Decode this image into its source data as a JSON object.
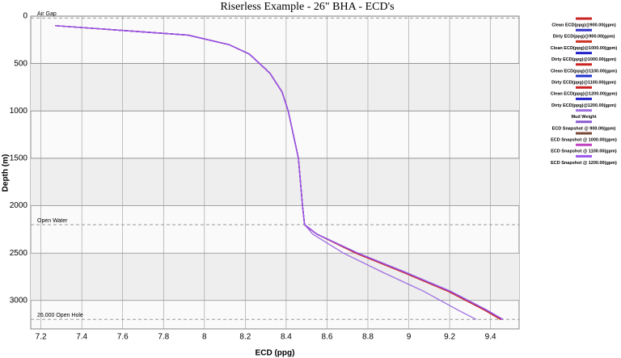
{
  "chart_data": {
    "type": "line",
    "title": "Riserless Example - 26\" BHA - ECD's",
    "x_label": "ECD (ppg)",
    "y_label": "Depth (m)",
    "xlim": [
      7.15,
      9.54
    ],
    "ylim": [
      0,
      3300
    ],
    "y_inverted": true,
    "grid": true,
    "xticks": [
      7.2,
      7.4,
      7.6,
      7.8,
      8.0,
      8.2,
      8.4,
      8.6,
      8.8,
      9.0,
      9.2,
      9.4
    ],
    "yticks": [
      0,
      500,
      1000,
      1500,
      2000,
      2500,
      3000
    ],
    "depth": [
      100,
      200,
      300,
      400,
      600,
      800,
      1000,
      1500,
      2000,
      2200,
      2300,
      2500,
      2700,
      2900,
      3100,
      3200
    ],
    "annotations": [
      {
        "text": "Air Gap",
        "depth": 20
      },
      {
        "text": "Open Water",
        "depth": 2200
      },
      {
        "text": "26.000 Open Hole",
        "depth": 3200
      }
    ],
    "series": [
      {
        "name": "Clean ECD(ppg)@900.00(gpm)",
        "color": "#cc2222",
        "values": [
          7.27,
          7.92,
          8.12,
          8.22,
          8.32,
          8.38,
          8.41,
          8.46,
          8.48,
          8.49,
          8.55,
          8.74,
          8.97,
          9.19,
          9.37,
          9.45
        ]
      },
      {
        "name": "Dirty ECD(ppg)@900.00(gpm)",
        "color": "#3333cc",
        "values": [
          7.27,
          7.92,
          8.12,
          8.22,
          8.32,
          8.38,
          8.41,
          8.46,
          8.48,
          8.49,
          8.55,
          8.75,
          8.98,
          9.2,
          9.38,
          9.46
        ]
      },
      {
        "name": "Clean ECD(ppg)@1000.00(gpm)",
        "color": "#cc3322",
        "values": [
          7.27,
          7.92,
          8.12,
          8.22,
          8.32,
          8.38,
          8.41,
          8.46,
          8.48,
          8.49,
          8.55,
          8.74,
          8.97,
          9.19,
          9.37,
          9.45
        ]
      },
      {
        "name": "Dirty ECD(ppg)@1000.00(gpm)",
        "color": "#2222cc",
        "values": [
          7.27,
          7.92,
          8.12,
          8.22,
          8.32,
          8.38,
          8.41,
          8.46,
          8.48,
          8.49,
          8.55,
          8.75,
          8.98,
          9.2,
          9.38,
          9.46
        ]
      },
      {
        "name": "Clean ECD(ppg)@1100.00(gpm)",
        "color": "#cc2222",
        "values": [
          7.27,
          7.92,
          8.12,
          8.22,
          8.32,
          8.38,
          8.41,
          8.46,
          8.48,
          8.49,
          8.55,
          8.74,
          8.97,
          9.19,
          9.37,
          9.45
        ]
      },
      {
        "name": "Dirty ECD(ppg)@1100.00(gpm)",
        "color": "#2233cc",
        "values": [
          7.27,
          7.92,
          8.12,
          8.22,
          8.32,
          8.38,
          8.41,
          8.46,
          8.48,
          8.49,
          8.55,
          8.75,
          8.98,
          9.2,
          9.38,
          9.46
        ]
      },
      {
        "name": "Clean ECD(ppg)@1200.00(gpm)",
        "color": "#cc2222",
        "values": [
          7.27,
          7.92,
          8.12,
          8.22,
          8.32,
          8.38,
          8.41,
          8.46,
          8.48,
          8.49,
          8.55,
          8.74,
          8.97,
          9.19,
          9.37,
          9.45
        ]
      },
      {
        "name": "Dirty ECD(ppg)@1200.00(gpm)",
        "color": "#2222cc",
        "values": [
          7.27,
          7.92,
          8.12,
          8.22,
          8.32,
          8.38,
          8.41,
          8.46,
          8.48,
          8.49,
          8.55,
          8.75,
          8.98,
          9.2,
          9.38,
          9.46
        ]
      },
      {
        "name": "Mud Weight",
        "color": "#a070e0",
        "values": [
          7.27,
          7.92,
          8.12,
          8.22,
          8.32,
          8.38,
          8.41,
          8.46,
          8.48,
          8.49,
          8.53,
          8.68,
          8.87,
          9.07,
          9.24,
          9.33
        ]
      },
      {
        "name": "ECD Snapshot @ 900.00(gpm)",
        "color": "#8a5ad0",
        "values": [
          7.27,
          7.92,
          8.12,
          8.22,
          8.32,
          8.38,
          8.41,
          8.46,
          8.48,
          8.49,
          8.55,
          8.75,
          8.98,
          9.2,
          9.38,
          9.46
        ]
      },
      {
        "name": "ECD Snapshot @ 1000.00(gpm)",
        "color": "#7a4a3a",
        "values": [
          7.27,
          7.92,
          8.12,
          8.22,
          8.32,
          8.38,
          8.41,
          8.46,
          8.48,
          8.49,
          8.55,
          8.75,
          8.98,
          9.2,
          9.38,
          9.46
        ]
      },
      {
        "name": "ECD Snapshot @ 1100.00(gpm)",
        "color": "#c040c0",
        "values": [
          7.27,
          7.92,
          8.12,
          8.22,
          8.32,
          8.38,
          8.41,
          8.46,
          8.48,
          8.49,
          8.55,
          8.75,
          8.98,
          9.2,
          9.38,
          9.46
        ]
      },
      {
        "name": "ECD Snapshot @ 1200.00(gpm)",
        "color": "#9955ee",
        "values": [
          7.27,
          7.92,
          8.12,
          8.22,
          8.32,
          8.38,
          8.41,
          8.46,
          8.48,
          8.49,
          8.55,
          8.75,
          8.98,
          9.2,
          9.38,
          9.46
        ]
      }
    ]
  }
}
